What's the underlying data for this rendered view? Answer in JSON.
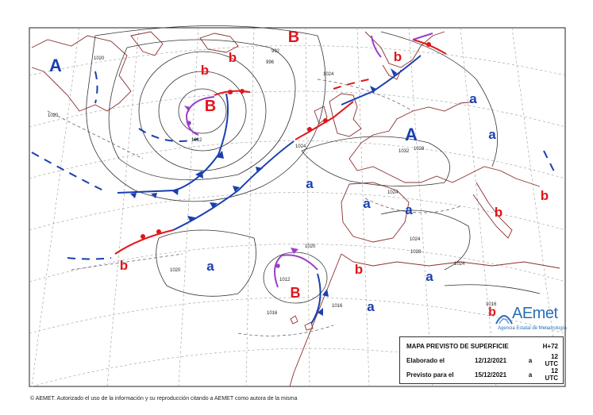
{
  "legend": {
    "title": "MAPA PREVISTO DE SUPERFICIE",
    "horizon": "H+72",
    "elaborated_label": "Elaborado el",
    "elaborated_date": "12/12/2021",
    "elaborated_sep": "a",
    "elaborated_time": "12 UTC",
    "valid_label": "Previsto para el",
    "valid_date": "15/12/2021",
    "valid_sep": "a",
    "valid_time": "12 UTC"
  },
  "footer": {
    "copyright": "© AEMET. Autorizado el uso de la información y su reproducción citando a AEMET como autora de la misma"
  },
  "brand": {
    "name": "AEmet",
    "subtitle": "Agencia Estatal de Meteorología"
  },
  "pressure_centers": [
    {
      "label": "A",
      "kind": "high",
      "color": "#1a3fb0"
    },
    {
      "label": "B",
      "kind": "low",
      "color": "#e0161b"
    },
    {
      "label": "B",
      "kind": "low",
      "color": "#e0161b"
    },
    {
      "label": "A",
      "kind": "high",
      "color": "#1a3fb0"
    },
    {
      "label": "B",
      "kind": "low",
      "color": "#e0161b"
    },
    {
      "label": "b",
      "kind": "low",
      "color": "#e0161b"
    },
    {
      "label": "b",
      "kind": "low",
      "color": "#e0161b"
    },
    {
      "label": "b",
      "kind": "low",
      "color": "#e0161b"
    },
    {
      "label": "b",
      "kind": "low",
      "color": "#e0161b"
    },
    {
      "label": "b",
      "kind": "low",
      "color": "#e0161b"
    },
    {
      "label": "b",
      "kind": "low",
      "color": "#e0161b"
    },
    {
      "label": "b",
      "kind": "low",
      "color": "#e0161b"
    },
    {
      "label": "b",
      "kind": "low",
      "color": "#e0161b"
    },
    {
      "label": "b",
      "kind": "low",
      "color": "#e0161b"
    },
    {
      "label": "a",
      "kind": "high",
      "color": "#1a3fb0"
    },
    {
      "label": "a",
      "kind": "high",
      "color": "#1a3fb0"
    },
    {
      "label": "a",
      "kind": "high",
      "color": "#1a3fb0"
    },
    {
      "label": "a",
      "kind": "high",
      "color": "#1a3fb0"
    },
    {
      "label": "a",
      "kind": "high",
      "color": "#1a3fb0"
    },
    {
      "label": "a",
      "kind": "high",
      "color": "#1a3fb0"
    },
    {
      "label": "a",
      "kind": "high",
      "color": "#1a3fb0"
    },
    {
      "label": "a",
      "kind": "high",
      "color": "#1a3fb0"
    },
    {
      "label": "a",
      "kind": "high",
      "color": "#1a3fb0"
    }
  ],
  "isobar_labels": [
    "1020",
    "992",
    "996",
    "1012",
    "1024",
    "1020",
    "1032",
    "1024",
    "1028",
    "1024",
    "1020",
    "1016",
    "1012",
    "1016",
    "1020",
    "1024",
    "1028",
    "1024",
    "1016"
  ],
  "colors": {
    "warm_front": "#e0161b",
    "cold_front": "#1a3fb0",
    "occluded_front": "#9b3fc7",
    "coastline": "#8a2f2f",
    "isobar": "#333333",
    "graticule": "#9a9a9a"
  }
}
